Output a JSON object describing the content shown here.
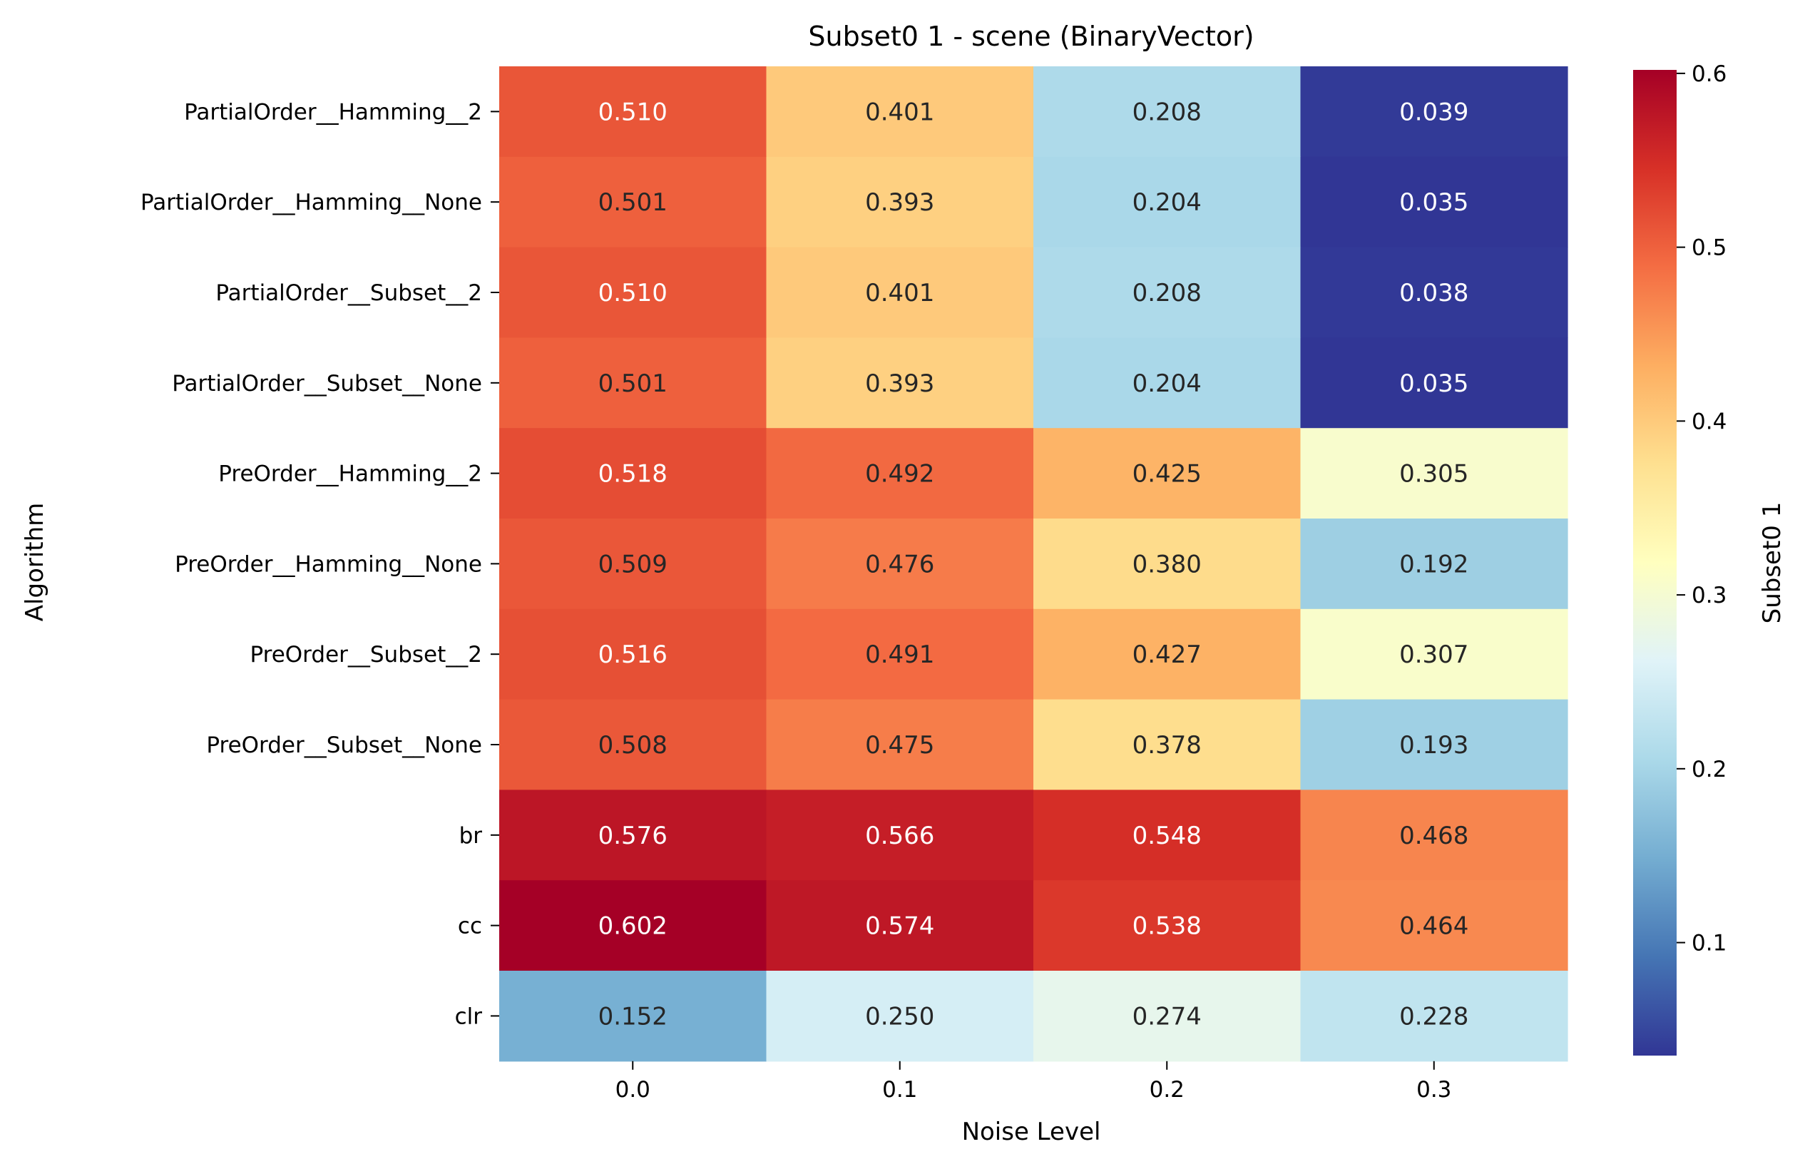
{
  "chart_data": {
    "type": "heatmap",
    "title": "Subset0 1 - scene (BinaryVector)",
    "xlabel": "Noise Level",
    "ylabel": "Algorithm",
    "colorbar_label": "Subset0 1",
    "x": [
      "0.0",
      "0.1",
      "0.2",
      "0.3"
    ],
    "y": [
      "PartialOrder__Hamming__2",
      "PartialOrder__Hamming__None",
      "PartialOrder__Subset__2",
      "PartialOrder__Subset__None",
      "PreOrder__Hamming__2",
      "PreOrder__Hamming__None",
      "PreOrder__Subset__2",
      "PreOrder__Subset__None",
      "br",
      "cc",
      "clr"
    ],
    "values": [
      [
        0.51,
        0.401,
        0.208,
        0.039
      ],
      [
        0.501,
        0.393,
        0.204,
        0.035
      ],
      [
        0.51,
        0.401,
        0.208,
        0.038
      ],
      [
        0.501,
        0.393,
        0.204,
        0.035
      ],
      [
        0.518,
        0.492,
        0.425,
        0.305
      ],
      [
        0.509,
        0.476,
        0.38,
        0.192
      ],
      [
        0.516,
        0.491,
        0.427,
        0.307
      ],
      [
        0.508,
        0.475,
        0.378,
        0.193
      ],
      [
        0.576,
        0.566,
        0.548,
        0.468
      ],
      [
        0.602,
        0.574,
        0.538,
        0.464
      ],
      [
        0.152,
        0.25,
        0.274,
        0.228
      ]
    ],
    "value_labels": [
      [
        "0.510",
        "0.401",
        "0.208",
        "0.039"
      ],
      [
        "0.501",
        "0.393",
        "0.204",
        "0.035"
      ],
      [
        "0.510",
        "0.401",
        "0.208",
        "0.038"
      ],
      [
        "0.501",
        "0.393",
        "0.204",
        "0.035"
      ],
      [
        "0.518",
        "0.492",
        "0.425",
        "0.305"
      ],
      [
        "0.509",
        "0.476",
        "0.380",
        "0.192"
      ],
      [
        "0.516",
        "0.491",
        "0.427",
        "0.307"
      ],
      [
        "0.508",
        "0.475",
        "0.378",
        "0.193"
      ],
      [
        "0.576",
        "0.566",
        "0.548",
        "0.468"
      ],
      [
        "0.602",
        "0.574",
        "0.538",
        "0.464"
      ],
      [
        "0.152",
        "0.250",
        "0.274",
        "0.228"
      ]
    ],
    "colormap": "RdYlBu_r",
    "color_range": [
      0.035,
      0.602
    ],
    "colorbar_ticks": [
      "0.1",
      "0.2",
      "0.3",
      "0.4",
      "0.5",
      "0.6"
    ],
    "grid": false,
    "legend": "colorbar-right"
  }
}
